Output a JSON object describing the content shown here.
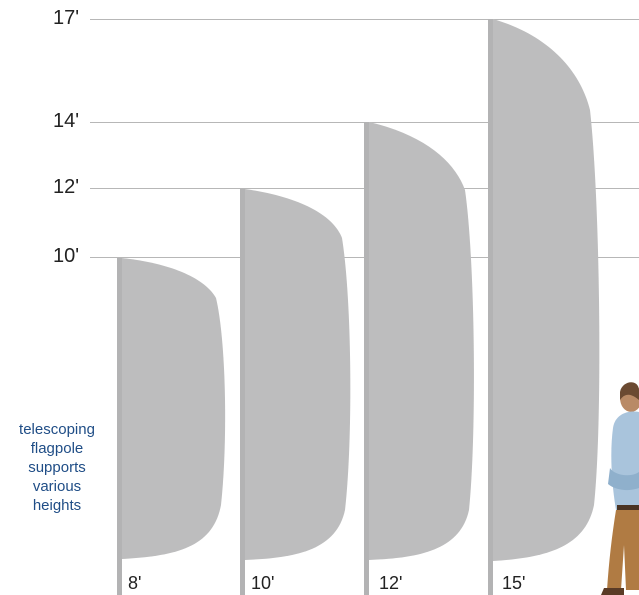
{
  "height_axis": [
    "17'",
    "14'",
    "12'",
    "10'"
  ],
  "caption_lines": [
    "telescoping",
    "flagpole",
    "supports",
    "various",
    "heights"
  ],
  "pole_labels": [
    "8'",
    "10'",
    "12'",
    "15'"
  ],
  "colors": {
    "flag": "#bdbdbe",
    "pole": "#b3b3b4",
    "grid": "#b7b7b7",
    "caption": "#1f4d86"
  },
  "person": {
    "icon": "standing-person-figure"
  }
}
